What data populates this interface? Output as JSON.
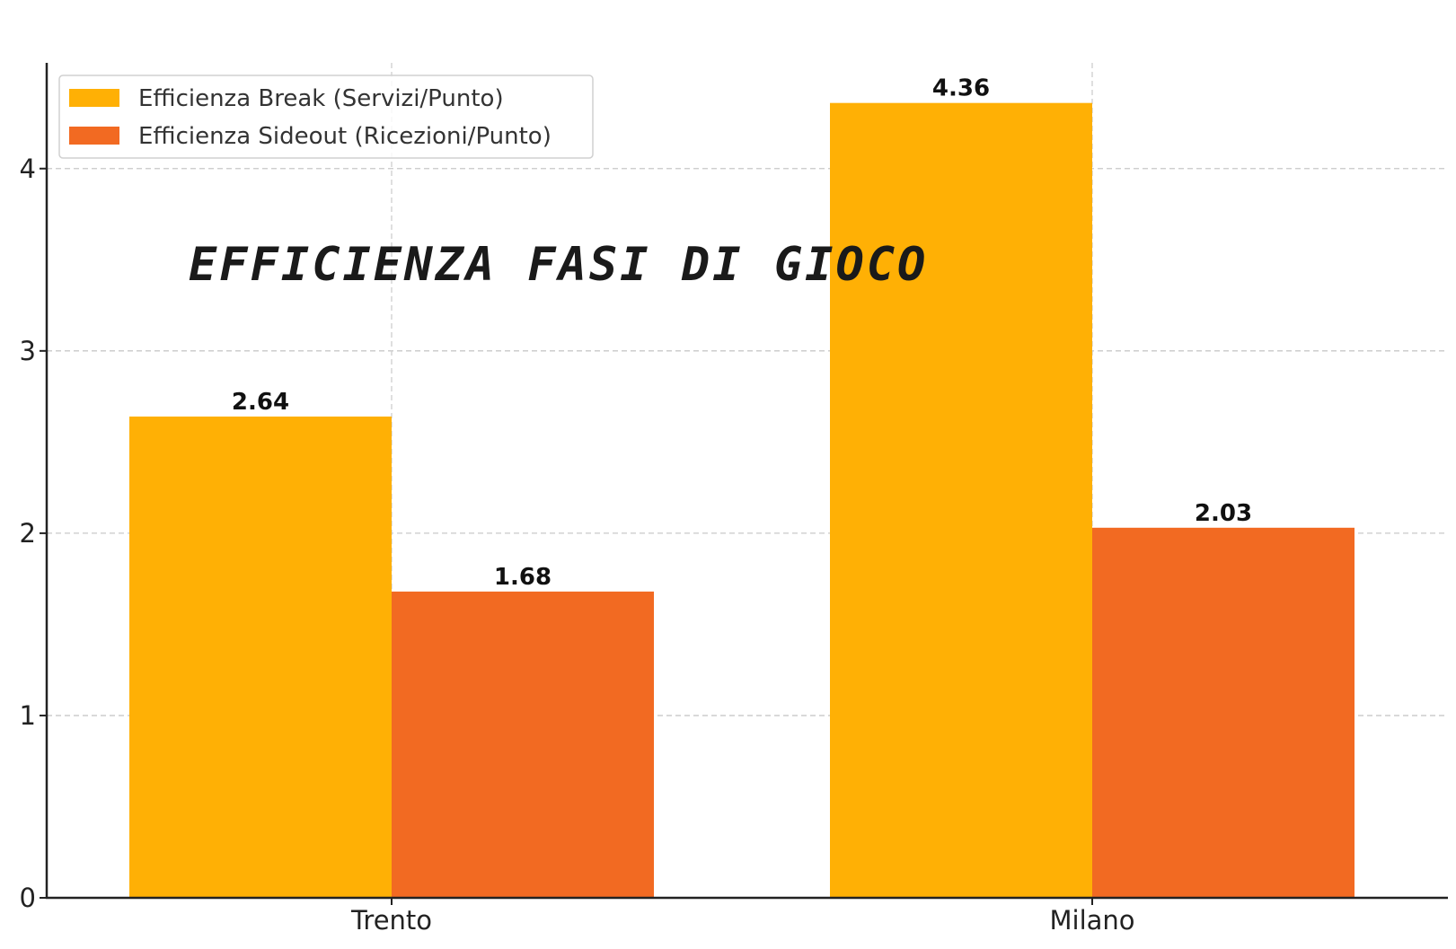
{
  "chart_data": {
    "type": "bar",
    "title": "EFFICIENZA FASI DI GIOCO",
    "xlabel": "",
    "ylabel": "",
    "categories": [
      "Trento",
      "Milano"
    ],
    "series": [
      {
        "name": "Efficienza Break (Servizi/Punto)",
        "values": [
          2.64,
          4.36
        ],
        "color": "#FFB005"
      },
      {
        "name": "Efficienza Sideout (Ricezioni/Punto)",
        "values": [
          1.68,
          2.03
        ],
        "color": "#F26A22"
      }
    ],
    "data_labels": [
      [
        "2.64",
        "4.36"
      ],
      [
        "1.68",
        "2.03"
      ]
    ],
    "ylim": [
      0,
      4.58
    ],
    "yticks": [
      0,
      1,
      2,
      3,
      4
    ],
    "grid": true,
    "legend_position": "top-left"
  }
}
